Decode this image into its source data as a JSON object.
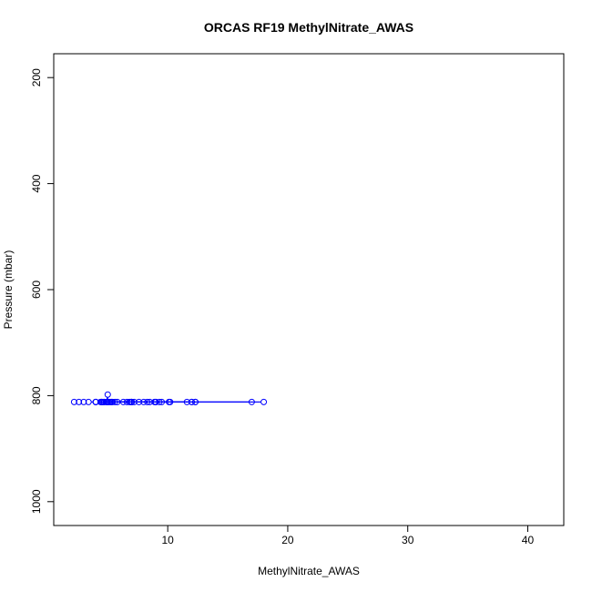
{
  "chart_data": {
    "type": "line",
    "title": "ORCAS RF19 MethylNitrate_AWAS",
    "xlabel": "MethylNitrate_AWAS",
    "ylabel": "Pressure (mbar)",
    "xlim": [
      0.5,
      43
    ],
    "ylim": [
      1045,
      155
    ],
    "y_reversed": true,
    "grid": false,
    "legend": "none",
    "x_ticks": [
      10,
      20,
      30,
      40
    ],
    "y_ticks": [
      200,
      400,
      600,
      800,
      1000
    ],
    "line_color": "#0000ff",
    "marker": "open-circle",
    "series": [
      {
        "x": [
          2.2,
          2.6,
          3.0,
          3.4,
          4.0,
          4.7,
          5.0,
          5.0,
          4.9,
          5.4,
          9.0,
          8.9,
          9.5,
          9.0,
          8.5,
          8.0,
          7.6,
          7.2,
          6.9,
          6.6,
          6.3,
          7.0,
          6.8,
          5.3,
          4.0,
          4.5,
          5.6,
          7.0,
          5.1,
          4.4,
          8.3,
          5.0,
          4.7,
          5.8,
          7.0,
          12.3,
          10.1,
          18.0,
          12.0,
          4.5,
          12.0,
          5.2,
          4.5,
          9.3,
          11.6,
          10.2,
          4.0,
          4.9,
          12.3,
          17.0,
          5.3,
          4.6
        ],
        "y": [
          812,
          812,
          812,
          812,
          812,
          812,
          812,
          798,
          812,
          812,
          812,
          812,
          812,
          812,
          812,
          812,
          812,
          812,
          812,
          812,
          812,
          812,
          812,
          812,
          812,
          812,
          812,
          812,
          812,
          812,
          812,
          812,
          812,
          812,
          812,
          812,
          812,
          812,
          812,
          812,
          812,
          812,
          812,
          812,
          812,
          812,
          812,
          812,
          812,
          812,
          812,
          812
        ]
      }
    ]
  }
}
